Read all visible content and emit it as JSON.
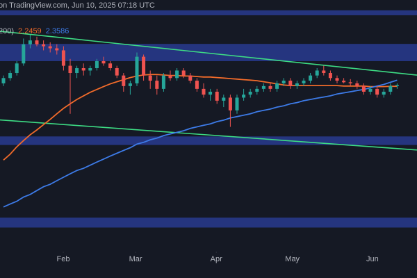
{
  "header": {
    "source": "on TradingView.com, Jun 10, 2025 07:18 UTC"
  },
  "chart_data": {
    "type": "candlestick",
    "legend_text": "200)",
    "categories": [
      null,
      null,
      null,
      null,
      null,
      null,
      null,
      null,
      null,
      null,
      null,
      null,
      null,
      null,
      null,
      null,
      null,
      null,
      null,
      null,
      null,
      null,
      null,
      null,
      null,
      null,
      null,
      null,
      null,
      null,
      null,
      null,
      null,
      null,
      null,
      null,
      null,
      null,
      null,
      null,
      null,
      null,
      null,
      null,
      null,
      null,
      null,
      null,
      null,
      null,
      null,
      null,
      null,
      null,
      null,
      null,
      null,
      null,
      null,
      null
    ],
    "open": [
      2.3,
      2.4,
      2.5,
      2.7,
      3.15,
      3.25,
      3.15,
      3.1,
      3.05,
      3.0,
      2.65,
      2.5,
      2.6,
      2.55,
      2.6,
      2.75,
      2.7,
      2.6,
      2.45,
      2.25,
      2.3,
      2.85,
      2.45,
      2.35,
      2.2,
      2.45,
      2.4,
      2.55,
      2.45,
      2.35,
      2.2,
      2.1,
      2.15,
      2.0,
      2.05,
      1.85,
      2.05,
      2.1,
      2.15,
      2.2,
      2.25,
      2.2,
      2.3,
      2.35,
      2.25,
      2.3,
      2.35,
      2.45,
      2.55,
      2.5,
      2.4,
      2.35,
      2.32,
      2.3,
      2.25,
      2.15,
      2.2,
      2.1,
      2.15,
      2.25
    ],
    "high": [
      2.45,
      2.55,
      2.75,
      3.3,
      3.4,
      3.35,
      3.25,
      3.2,
      3.15,
      3.1,
      2.8,
      2.65,
      2.7,
      2.65,
      2.8,
      2.85,
      2.75,
      2.65,
      2.5,
      2.35,
      2.95,
      2.9,
      2.55,
      2.45,
      2.5,
      2.55,
      2.6,
      2.6,
      2.5,
      2.4,
      2.3,
      2.2,
      2.2,
      2.1,
      2.1,
      2.1,
      2.2,
      2.2,
      2.25,
      2.3,
      2.3,
      2.35,
      2.4,
      2.4,
      2.35,
      2.4,
      2.5,
      2.6,
      2.65,
      2.55,
      2.45,
      2.4,
      2.38,
      2.35,
      2.3,
      2.25,
      2.25,
      2.2,
      2.3,
      2.3
    ],
    "low": [
      2.25,
      2.35,
      2.45,
      2.65,
      3.05,
      3.1,
      3.0,
      2.95,
      2.9,
      2.55,
      1.8,
      2.4,
      2.45,
      2.45,
      2.55,
      2.65,
      2.55,
      2.4,
      2.15,
      2.1,
      2.25,
      2.35,
      2.2,
      2.1,
      2.15,
      2.35,
      2.35,
      2.4,
      2.3,
      2.15,
      2.05,
      2.0,
      1.95,
      1.9,
      1.62,
      1.8,
      2.0,
      2.05,
      2.1,
      2.15,
      2.15,
      2.15,
      2.25,
      2.2,
      2.2,
      2.25,
      2.3,
      2.4,
      2.45,
      2.35,
      2.3,
      2.3,
      2.25,
      2.2,
      2.1,
      2.1,
      2.05,
      2.05,
      2.1,
      2.2
    ],
    "close": [
      2.4,
      2.5,
      2.7,
      3.15,
      3.25,
      3.15,
      3.1,
      3.05,
      3.0,
      2.65,
      2.5,
      2.6,
      2.55,
      2.6,
      2.75,
      2.7,
      2.6,
      2.45,
      2.25,
      2.3,
      2.85,
      2.45,
      2.35,
      2.2,
      2.45,
      2.4,
      2.55,
      2.45,
      2.35,
      2.2,
      2.1,
      2.15,
      2.0,
      2.05,
      1.85,
      2.05,
      2.1,
      2.15,
      2.2,
      2.25,
      2.2,
      2.3,
      2.35,
      2.25,
      2.3,
      2.35,
      2.45,
      2.55,
      2.5,
      2.4,
      2.35,
      2.32,
      2.3,
      2.25,
      2.15,
      2.2,
      2.1,
      2.15,
      2.25,
      2.27
    ],
    "up_color": "#26a69a",
    "down_color": "#ef5350",
    "series": [
      {
        "color": "#f26b2a",
        "values": [
          1.24,
          1.3,
          1.38,
          1.45,
          1.52,
          1.58,
          1.65,
          1.72,
          1.8,
          1.88,
          1.95,
          2.02,
          2.08,
          2.14,
          2.19,
          2.24,
          2.29,
          2.33,
          2.37,
          2.41,
          2.44,
          2.46,
          2.47,
          2.47,
          2.46,
          2.45,
          2.45,
          2.44,
          2.44,
          2.43,
          2.42,
          2.42,
          2.41,
          2.4,
          2.39,
          2.38,
          2.37,
          2.36,
          2.35,
          2.33,
          2.31,
          2.29,
          2.27,
          2.26,
          2.26,
          2.26,
          2.26,
          2.26,
          2.26,
          2.26,
          2.26,
          2.25,
          2.25,
          2.25,
          2.25,
          2.24,
          2.24,
          2.24,
          2.245,
          2.2459
        ]
      },
      {
        "color": "#3d7be8",
        "values": [
          0.85,
          0.87,
          0.89,
          0.92,
          0.94,
          0.97,
          1.0,
          1.02,
          1.05,
          1.08,
          1.11,
          1.14,
          1.16,
          1.19,
          1.22,
          1.25,
          1.28,
          1.31,
          1.34,
          1.37,
          1.41,
          1.43,
          1.46,
          1.48,
          1.51,
          1.53,
          1.55,
          1.57,
          1.6,
          1.62,
          1.64,
          1.66,
          1.69,
          1.71,
          1.74,
          1.76,
          1.78,
          1.8,
          1.83,
          1.85,
          1.87,
          1.9,
          1.92,
          1.95,
          1.97,
          2.0,
          2.02,
          2.04,
          2.06,
          2.08,
          2.11,
          2.13,
          2.15,
          2.17,
          2.19,
          2.22,
          2.25,
          2.28,
          2.32,
          2.3586
        ]
      }
    ],
    "zones": [
      {
        "low": 3.98,
        "high": 4.14
      },
      {
        "low": 2.75,
        "high": 3.16
      },
      {
        "low": 1.4,
        "high": 1.5
      },
      {
        "low": 0.72,
        "high": 0.78
      }
    ],
    "zone_color": "#2b3f9e",
    "trendlines": [
      {
        "color": "#3ddc84",
        "values": [
          3.49,
          2.5
        ]
      },
      {
        "color": "#3ddc84",
        "values": [
          1.71,
          1.36
        ]
      }
    ],
    "xticks": [
      {
        "value": 8.96,
        "label": "Feb"
      },
      {
        "value": 19.8,
        "label": "Mar"
      },
      {
        "value": 31.9,
        "label": "Apr"
      },
      {
        "value": 43.3,
        "label": "May"
      },
      {
        "value": 55.3,
        "label": "Jun"
      }
    ],
    "ylim": [
      0.6,
      4.5
    ],
    "log_scale": true,
    "grid": false
  }
}
